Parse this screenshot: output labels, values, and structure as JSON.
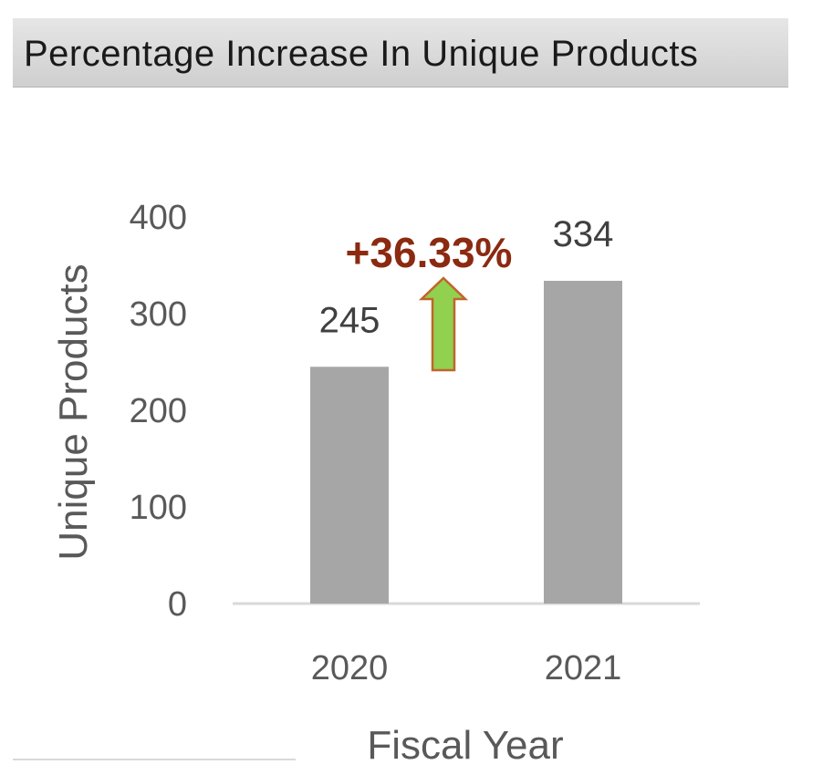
{
  "title": "Percentage Increase In Unique Products",
  "chart_data": {
    "type": "bar",
    "categories": [
      "2020",
      "2021"
    ],
    "values": [
      245,
      334
    ],
    "data_labels": [
      "245",
      "334"
    ],
    "xlabel": "Fiscal Year",
    "ylabel": "Unique Products",
    "ylim": [
      0,
      400
    ],
    "yticks": [
      0,
      100,
      200,
      300,
      400
    ],
    "ytick_labels": [
      "0",
      "100",
      "200",
      "300",
      "400"
    ],
    "grid": false,
    "annotation": {
      "text": "+36.33%",
      "arrow": "up",
      "arrow_color": "#92d050",
      "text_color": "#8b2a10"
    },
    "bar_color": "#a6a6a6"
  }
}
